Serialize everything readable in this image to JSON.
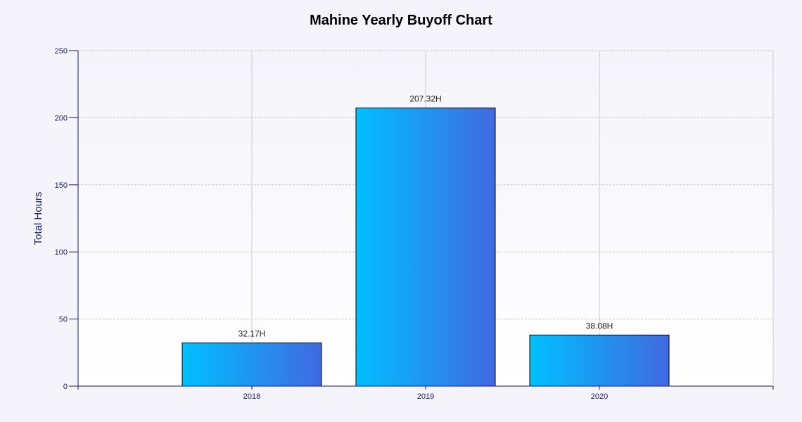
{
  "chart_data": {
    "type": "bar",
    "title": "Mahine Yearly Buyoff Chart",
    "xlabel": "",
    "ylabel": "Total Hours",
    "categories": [
      "2018",
      "2019",
      "2020"
    ],
    "values": [
      32.17,
      207.32,
      38.08
    ],
    "data_labels": [
      "32.17H",
      "207.32H",
      "38.08H"
    ],
    "ylim": [
      0,
      250
    ],
    "yticks": [
      0,
      50,
      100,
      150,
      200,
      250
    ],
    "ytick_labels": [
      "0",
      "50",
      "100",
      "150",
      "200",
      "250"
    ],
    "x_slots": 4,
    "grid": true,
    "legend": "none"
  },
  "colors": {
    "bar_start": "#00c0ff",
    "bar_end": "#4169e1",
    "axis": "#1a1a6e",
    "grid": "#cccccc",
    "tick_text": "#1a1a6e",
    "label_text": "#222222",
    "plot_bg_top": "#f4f4fa",
    "plot_bg_bottom": "#ffffff"
  }
}
